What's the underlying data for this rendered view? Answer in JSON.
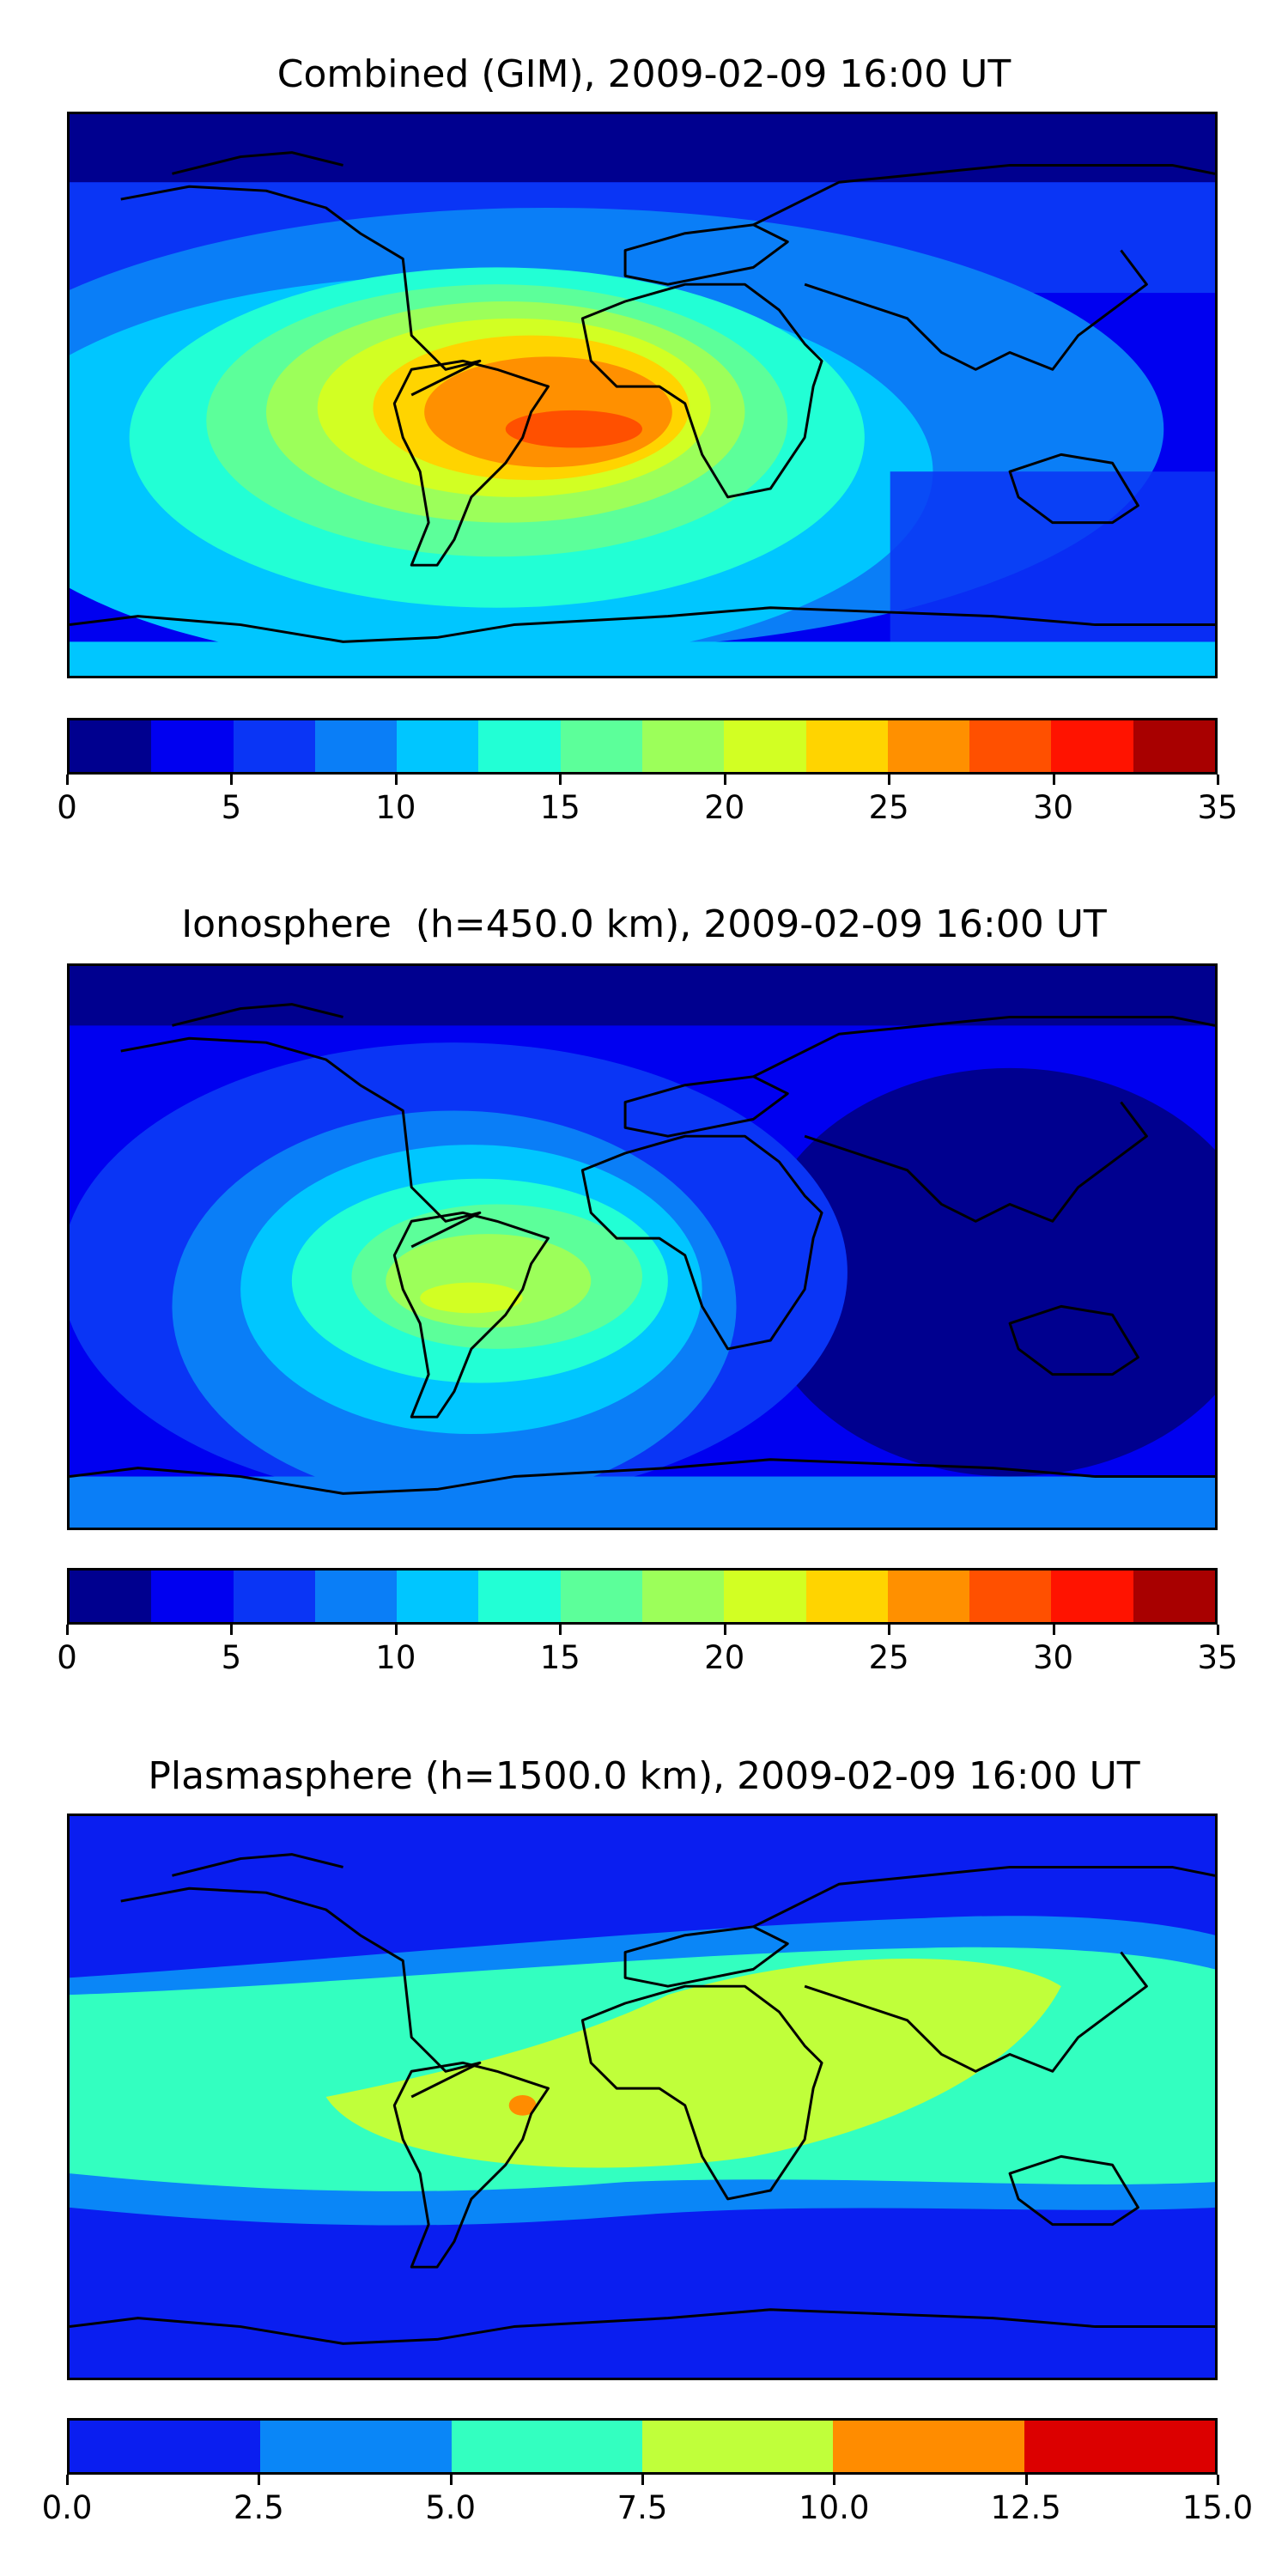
{
  "panels": [
    {
      "title": "Combined (GIM), 2009-02-09 16:00 UT",
      "colorbar": {
        "ticks": [
          "0",
          "5",
          "10",
          "15",
          "20",
          "25",
          "30",
          "35"
        ],
        "colors": [
          "#00008f",
          "#0000f0",
          "#0a35f5",
          "#0a7ef7",
          "#00c6ff",
          "#22ffd5",
          "#5cff9a",
          "#9cff5a",
          "#d2ff23",
          "#ffd400",
          "#ff9000",
          "#ff5000",
          "#ff1300",
          "#a80000"
        ]
      }
    },
    {
      "title": "Ionosphere  (h=450.0 km), 2009-02-09 16:00 UT",
      "colorbar": {
        "ticks": [
          "0",
          "5",
          "10",
          "15",
          "20",
          "25",
          "30",
          "35"
        ],
        "colors": [
          "#00008f",
          "#0000f0",
          "#0a35f5",
          "#0a7ef7",
          "#00c6ff",
          "#22ffd5",
          "#5cff9a",
          "#9cff5a",
          "#d2ff23",
          "#ffd400",
          "#ff9000",
          "#ff5000",
          "#ff1300",
          "#a80000"
        ]
      }
    },
    {
      "title": "Plasmasphere (h=1500.0 km), 2009-02-09 16:00 UT",
      "colorbar": {
        "ticks": [
          "0.0",
          "2.5",
          "5.0",
          "7.5",
          "10.0",
          "12.5",
          "15.0"
        ],
        "colors": [
          "#0a1ef0",
          "#0a86f7",
          "#33ffc0",
          "#c0ff3a",
          "#ff8c00",
          "#dc0000"
        ]
      }
    }
  ],
  "chart_data": [
    {
      "type": "heatmap",
      "title": "Combined (GIM), 2009-02-09 16:00 UT",
      "colorbar_range": [
        0,
        35
      ],
      "colorbar_levels": [
        0,
        2.5,
        5,
        7.5,
        10,
        12.5,
        15,
        17.5,
        20,
        22.5,
        25,
        27.5,
        30,
        32.5,
        35
      ],
      "colormap": "jet",
      "feature": "peak values 25-30 over South America and the equatorial Atlantic"
    },
    {
      "type": "heatmap",
      "title": "Ionosphere  (h=450.0 km), 2009-02-09 16:00 UT",
      "colorbar_range": [
        0,
        35
      ],
      "colorbar_levels": [
        0,
        2.5,
        5,
        7.5,
        10,
        12.5,
        15,
        17.5,
        20,
        22.5,
        25,
        27.5,
        30,
        32.5,
        35
      ],
      "colormap": "jet",
      "feature": "peak values 20-22.5 over South America"
    },
    {
      "type": "heatmap",
      "title": "Plasmasphere (h=1500.0 km), 2009-02-09 16:00 UT",
      "colorbar_range": [
        0,
        15
      ],
      "colorbar_levels": [
        0,
        2.5,
        5,
        7.5,
        10,
        12.5,
        15
      ],
      "colormap": "jet",
      "feature": "7.5-10 band across the tropics, small 10-12.5 spot near Brazil coast"
    }
  ]
}
